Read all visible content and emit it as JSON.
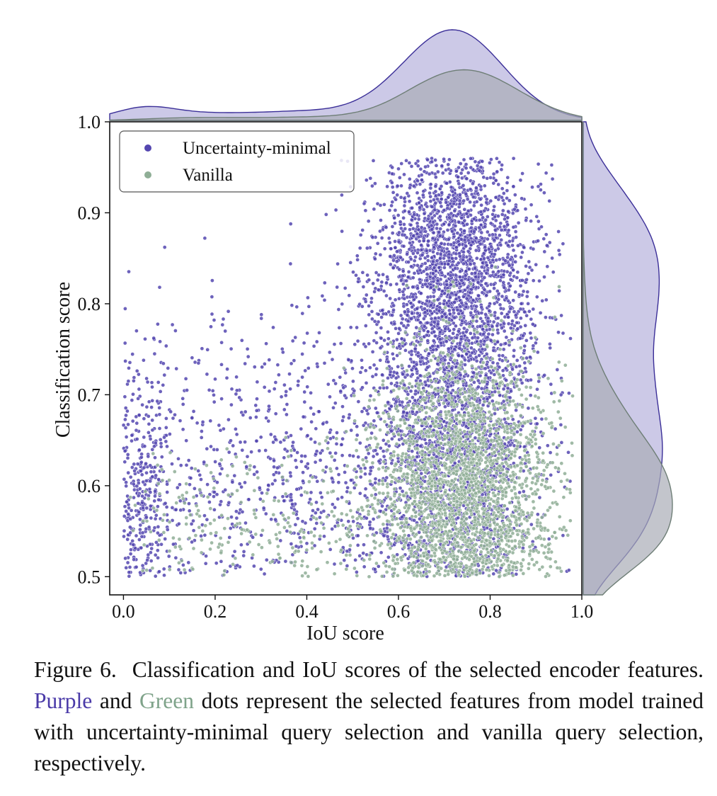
{
  "chart_data": {
    "type": "scatter",
    "xlabel": "IoU score",
    "ylabel": "Classification score",
    "xlim": [
      -0.03,
      1.0
    ],
    "ylim": [
      0.48,
      1.0
    ],
    "x_ticks": [
      "0.0",
      "0.2",
      "0.4",
      "0.6",
      "0.8",
      "1.0"
    ],
    "y_ticks": [
      "0.5",
      "0.6",
      "0.7",
      "0.8",
      "0.9",
      "1.0"
    ],
    "legend": {
      "position": "top-left"
    },
    "marginals": [
      "top: density of IoU score",
      "right: density of Classification score"
    ],
    "series": [
      {
        "name": "Uncertainty-minimal",
        "color": "#5446b0",
        "clusters": [
          {
            "x_mean": 0.72,
            "x_sd": 0.09,
            "y_mean": 0.72,
            "y_sd": 0.15,
            "approx_points": 3000
          },
          {
            "x_mean": 0.72,
            "x_sd": 0.09,
            "y_mean": 0.86,
            "y_sd": 0.05,
            "approx_points": 900
          },
          {
            "x_mean": 0.4,
            "x_sd": 0.25,
            "y_mean": 0.6,
            "y_sd": 0.1,
            "approx_points": 900
          },
          {
            "x_mean": 0.03,
            "x_sd": 0.04,
            "y_mean": 0.58,
            "y_sd": 0.08,
            "approx_points": 300
          }
        ]
      },
      {
        "name": "Vanilla",
        "color": "#8fae96",
        "clusters": [
          {
            "x_mean": 0.74,
            "x_sd": 0.1,
            "y_mean": 0.58,
            "y_sd": 0.08,
            "approx_points": 2400
          },
          {
            "x_mean": 0.3,
            "x_sd": 0.25,
            "y_mean": 0.55,
            "y_sd": 0.05,
            "approx_points": 300
          }
        ]
      }
    ],
    "density_colors": {
      "purple_fill": "#c9c6e6",
      "purple_line": "#3b2f98",
      "green_fill": "#a9adb6",
      "green_line": "#6e7e76"
    }
  },
  "caption": {
    "lead": "Figure 6.",
    "text1": "Classification and IoU scores of the selected encoder features.",
    "purple": "Purple",
    "and": "and",
    "green": "Green",
    "text2": "dots represent the selected features from model trained with uncertainty-minimal query selection and vanilla query selection, respectively."
  }
}
